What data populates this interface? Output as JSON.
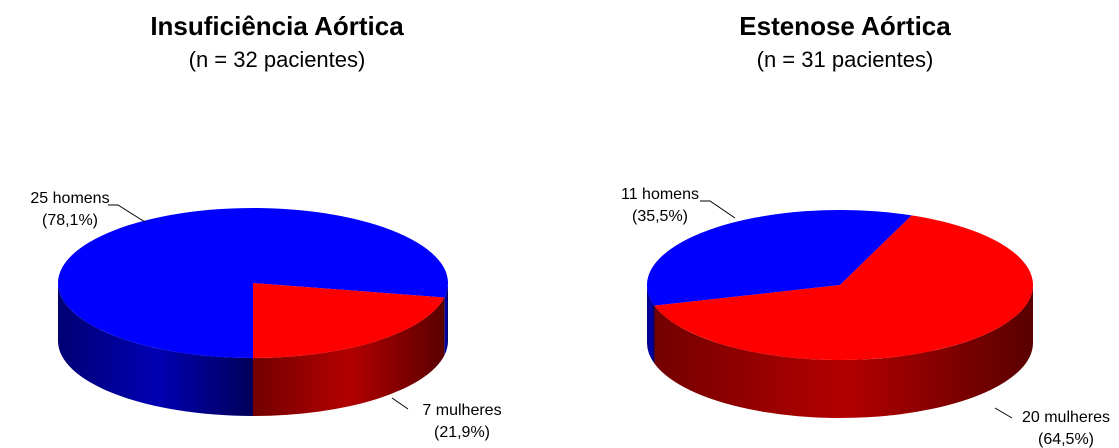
{
  "chart_data": [
    {
      "type": "pie",
      "title": "Insuficiência Aórtica",
      "subtitle": "(n = 32 pacientes)",
      "labels": [
        "25 homens",
        "7 mulheres"
      ],
      "values": [
        78.1,
        21.9
      ],
      "value_labels": [
        "(78,1%)",
        "(21,9%)"
      ],
      "colors": [
        "#0000ff",
        "#ff0000"
      ]
    },
    {
      "type": "pie",
      "title": "Estenose Aórtica",
      "subtitle": "(n = 31 pacientes)",
      "labels": [
        "11 homens",
        "20 mulheres"
      ],
      "values": [
        35.5,
        64.5
      ],
      "value_labels": [
        "(35,5%)",
        "(64,5%)"
      ],
      "colors": [
        "#0000ff",
        "#ff0000"
      ]
    }
  ]
}
